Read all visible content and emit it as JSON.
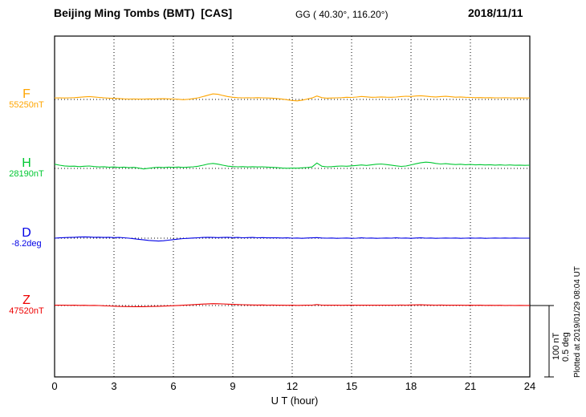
{
  "header": {
    "station_title": "Beijing Ming Tombs (BMT)  [CAS]",
    "coordinates": "GG ( 40.30°, 116.20°)",
    "date": "2018/11/11"
  },
  "scale_bar": {
    "label_nt": "100 nT",
    "label_deg": "0.5 deg"
  },
  "footer": {
    "plotted_at": "Plotted at 2019/01/29 08:04 UT"
  },
  "chart_data": {
    "type": "line",
    "xlabel": "U T (hour)",
    "x_range": [
      0,
      24
    ],
    "x_ticks": [
      0,
      3,
      6,
      9,
      12,
      15,
      18,
      21,
      24
    ],
    "x_start": 0,
    "x_step": 0.25,
    "grid": "dotted vertical lines at 3-hour ticks, dotted horizontal baseline per trace",
    "legend_position": "left margin trace labels",
    "scale_reference": {
      "nT_per_bar": 100,
      "deg_per_bar": 0.5
    },
    "series": [
      {
        "name": "F",
        "unit": "nT",
        "color": "#ffa500",
        "baseline_value": 55250,
        "baseline_label": "55250nT",
        "offsets": [
          2,
          2.2,
          2,
          2.3,
          2.5,
          3,
          3.6,
          4,
          3.5,
          2.8,
          2.2,
          1.8,
          1.5,
          1.2,
          0.8,
          0.6,
          0.7,
          0.5,
          0.6,
          0.8,
          0.7,
          0.9,
          1,
          0.8,
          0.6,
          0.2,
          -0.3,
          0.2,
          1,
          2.2,
          4,
          6,
          7.8,
          7.2,
          5.5,
          4,
          3,
          2.5,
          2.2,
          2.4,
          2.3,
          2.5,
          2.2,
          2,
          1.8,
          1.2,
          0.5,
          -0.5,
          -1.5,
          -2,
          -1,
          0.5,
          2,
          4.8,
          2.5,
          1.8,
          2,
          2.2,
          2.5,
          3,
          2.8,
          3.4,
          4.2,
          3.6,
          3,
          3.2,
          3.5,
          3.2,
          3,
          3.4,
          4,
          4.5,
          4.2,
          4.8,
          5.2,
          4.6,
          3.8,
          3.5,
          4,
          4.4,
          3.8,
          3.2,
          3.5,
          3,
          2.8,
          2.5,
          2.6,
          2.4,
          2.5,
          2.3,
          2.2,
          2.4,
          2.2,
          2,
          2.1,
          2,
          2
        ]
      },
      {
        "name": "H",
        "unit": "nT",
        "color": "#00c832",
        "baseline_value": 28190,
        "baseline_label": "28190nT",
        "offsets": [
          6,
          4.5,
          3.5,
          3,
          3.2,
          2.5,
          3,
          3.4,
          2.6,
          2,
          2.4,
          1.6,
          2,
          1.4,
          1.8,
          1,
          1.5,
          0.4,
          -0.8,
          0.2,
          1,
          1.6,
          1.2,
          1.8,
          1.5,
          1.9,
          1.4,
          1.8,
          2.2,
          3,
          4.5,
          6.2,
          7,
          6,
          4.5,
          3.2,
          2.6,
          2.2,
          2.5,
          2,
          2.4,
          2,
          2.3,
          1.8,
          1.5,
          1,
          0.5,
          0.2,
          0.5,
          0.3,
          0.8,
          1.2,
          2,
          7.5,
          3,
          2.2,
          2.5,
          3,
          3.4,
          3,
          3.6,
          4.2,
          4.8,
          4.2,
          5,
          5.8,
          6.2,
          5.4,
          4.6,
          3.6,
          2.8,
          3.4,
          5,
          6.5,
          8,
          8.8,
          8.2,
          7,
          6.2,
          6.6,
          6,
          5.4,
          5.8,
          5.2,
          5.5,
          5,
          5.3,
          4.8,
          5.2,
          4.6,
          5,
          4.5,
          4.8,
          4.4,
          4.6,
          4.3,
          4.5
        ]
      },
      {
        "name": "D",
        "unit": "deg",
        "color": "#0000e6",
        "baseline_value": -8.2,
        "baseline_label": "-8.2deg",
        "offsets": [
          0,
          0.002,
          0.004,
          0.005,
          0.006,
          0.008,
          0.009,
          0.008,
          0.006,
          0.007,
          0.005,
          0.006,
          0.004,
          0.005,
          0.003,
          0,
          -0.004,
          -0.008,
          -0.012,
          -0.016,
          -0.018,
          -0.02,
          -0.018,
          -0.014,
          -0.01,
          -0.006,
          -0.003,
          -0.001,
          0.001,
          0.003,
          0.005,
          0.006,
          0.005,
          0.004,
          0.005,
          0.006,
          0.004,
          0.005,
          0.003,
          0.004,
          0.005,
          0.003,
          0.004,
          0.002,
          0.003,
          0.002,
          0.001,
          0.002,
          0,
          0.001,
          -0.001,
          0.001,
          0.002,
          0.004,
          0.001,
          0,
          0.001,
          -0.001,
          0,
          0.001,
          -0.001,
          0,
          0.002,
          0,
          0.001,
          -0.001,
          0,
          0.001,
          0,
          0.002,
          0,
          0.001,
          -0.001,
          0.001,
          0.002,
          0,
          0.001,
          -0.001,
          0,
          0.001,
          0,
          0.001,
          -0.001,
          0,
          0.001,
          0,
          0.001,
          -0.001,
          0,
          0.001,
          0,
          0.001,
          0,
          0.001,
          0,
          0,
          0
        ]
      },
      {
        "name": "Z",
        "unit": "nT",
        "color": "#ee0000",
        "baseline_value": 47520,
        "baseline_label": "47520nT",
        "offsets": [
          0.5,
          0.4,
          0.5,
          0.3,
          0.4,
          0.2,
          0.3,
          0.1,
          0.2,
          0,
          -0.3,
          -0.6,
          -0.9,
          -1.2,
          -1.4,
          -1.5,
          -1.6,
          -1.5,
          -1.6,
          -1.4,
          -1.2,
          -1,
          -0.8,
          -0.5,
          -0.2,
          0.1,
          0.4,
          0.8,
          1.2,
          1.6,
          2,
          2.4,
          2.6,
          2.5,
          2.2,
          1.9,
          1.6,
          1.3,
          1.1,
          0.9,
          0.8,
          0.7,
          0.8,
          0.6,
          0.7,
          0.5,
          0.4,
          0.3,
          0.4,
          0.2,
          0.3,
          0.4,
          0.6,
          1.4,
          0.6,
          0.5,
          0.4,
          0.5,
          0.3,
          0.4,
          0.5,
          0.4,
          0.6,
          0.5,
          0.4,
          0.5,
          0.6,
          0.4,
          0.5,
          0.6,
          0.7,
          0.6,
          0.8,
          0.9,
          1,
          0.8,
          0.7,
          0.6,
          0.7,
          0.5,
          0.6,
          0.4,
          0.5,
          0.3,
          0.4,
          0.3,
          0.4,
          0.2,
          0.3,
          0.2,
          0.3,
          0.1,
          0.2,
          0.1,
          0.2,
          0.1,
          0.1
        ]
      }
    ]
  }
}
